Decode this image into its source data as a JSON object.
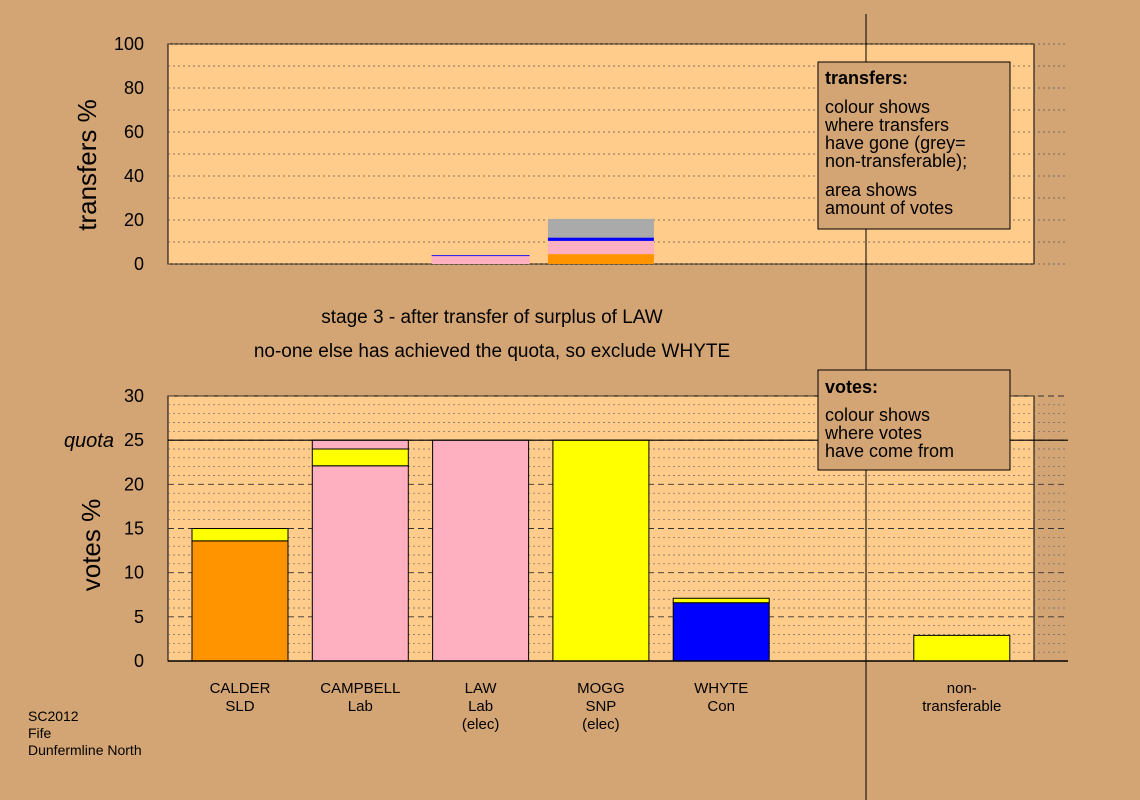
{
  "colors": {
    "background": "#d4a574",
    "plot_bg": "#ffcc8c",
    "SLD": "#ff9300",
    "Lab": "#ffb0c0",
    "SNP": "#ffff00",
    "Con": "#0000ff",
    "non_transferable": "#aaaaaa"
  },
  "chart_data": [
    {
      "type": "bar",
      "stacked": true,
      "ylabel": "transfers %",
      "ylim": [
        0,
        100
      ],
      "yticks": [
        0,
        20,
        40,
        60,
        80,
        100
      ],
      "grid": true,
      "bars": [
        {
          "category_index": 2,
          "segments": [
            {
              "party": "Lab",
              "value": 3.6
            },
            {
              "party": "Con",
              "value": 0.4
            }
          ]
        },
        {
          "category_index": 3,
          "segments": [
            {
              "party": "SLD",
              "value": 4.5
            },
            {
              "party": "Lab",
              "value": 6.0
            },
            {
              "party": "Con",
              "value": 1.5
            },
            {
              "party": "non_transferable",
              "value": 8.5
            }
          ]
        }
      ]
    },
    {
      "type": "bar",
      "stacked": true,
      "ylabel": "votes %",
      "ylim": [
        0,
        30
      ],
      "yticks": [
        0,
        5,
        10,
        15,
        20,
        25,
        30
      ],
      "quota": 25,
      "quota_label": "quota",
      "grid": true,
      "bars": [
        {
          "category_index": 0,
          "segments": [
            {
              "party": "SLD",
              "value": 13.6
            },
            {
              "party": "SNP",
              "value": 1.4
            }
          ]
        },
        {
          "category_index": 1,
          "segments": [
            {
              "party": "Lab",
              "value": 22.1
            },
            {
              "party": "SNP",
              "value": 1.9
            },
            {
              "party": "Lab",
              "value": 1.0
            }
          ]
        },
        {
          "category_index": 2,
          "segments": [
            {
              "party": "Lab",
              "value": 25.0
            }
          ]
        },
        {
          "category_index": 3,
          "segments": [
            {
              "party": "SNP",
              "value": 25.0
            }
          ]
        },
        {
          "category_index": 4,
          "segments": [
            {
              "party": "Con",
              "value": 6.6
            },
            {
              "party": "SNP",
              "value": 0.5
            }
          ]
        },
        {
          "category_index": 6,
          "segments": [
            {
              "party": "SNP",
              "value": 2.9
            }
          ]
        }
      ]
    }
  ],
  "categories": [
    {
      "name": "CALDER",
      "party": "SLD"
    },
    {
      "name": "CAMPBELL",
      "party": "Lab"
    },
    {
      "name": "LAW",
      "party": "Lab",
      "status": "(elec)"
    },
    {
      "name": "MOGG",
      "party": "SNP",
      "status": "(elec)"
    },
    {
      "name": "WHYTE",
      "party": "Con"
    },
    {
      "name": "",
      "party": ""
    },
    {
      "name": "non-",
      "party": "transferable"
    }
  ],
  "stage_text": {
    "line1": "stage 3 - after transfer of surplus of LAW",
    "line2": "no-one else has achieved the quota, so exclude WHYTE"
  },
  "transfers_box": {
    "heading": "transfers:",
    "lines": [
      "colour shows",
      "where transfers",
      "have gone (grey=",
      "non-transferable);"
    ],
    "lines2": [
      "area shows",
      "amount of votes"
    ]
  },
  "votes_box": {
    "heading": "votes:",
    "lines": [
      "colour shows",
      "where votes",
      "have come from"
    ]
  },
  "sidebar": {
    "line1": "SC2012",
    "line2": "Fife",
    "line3": "Dunfermline North"
  }
}
